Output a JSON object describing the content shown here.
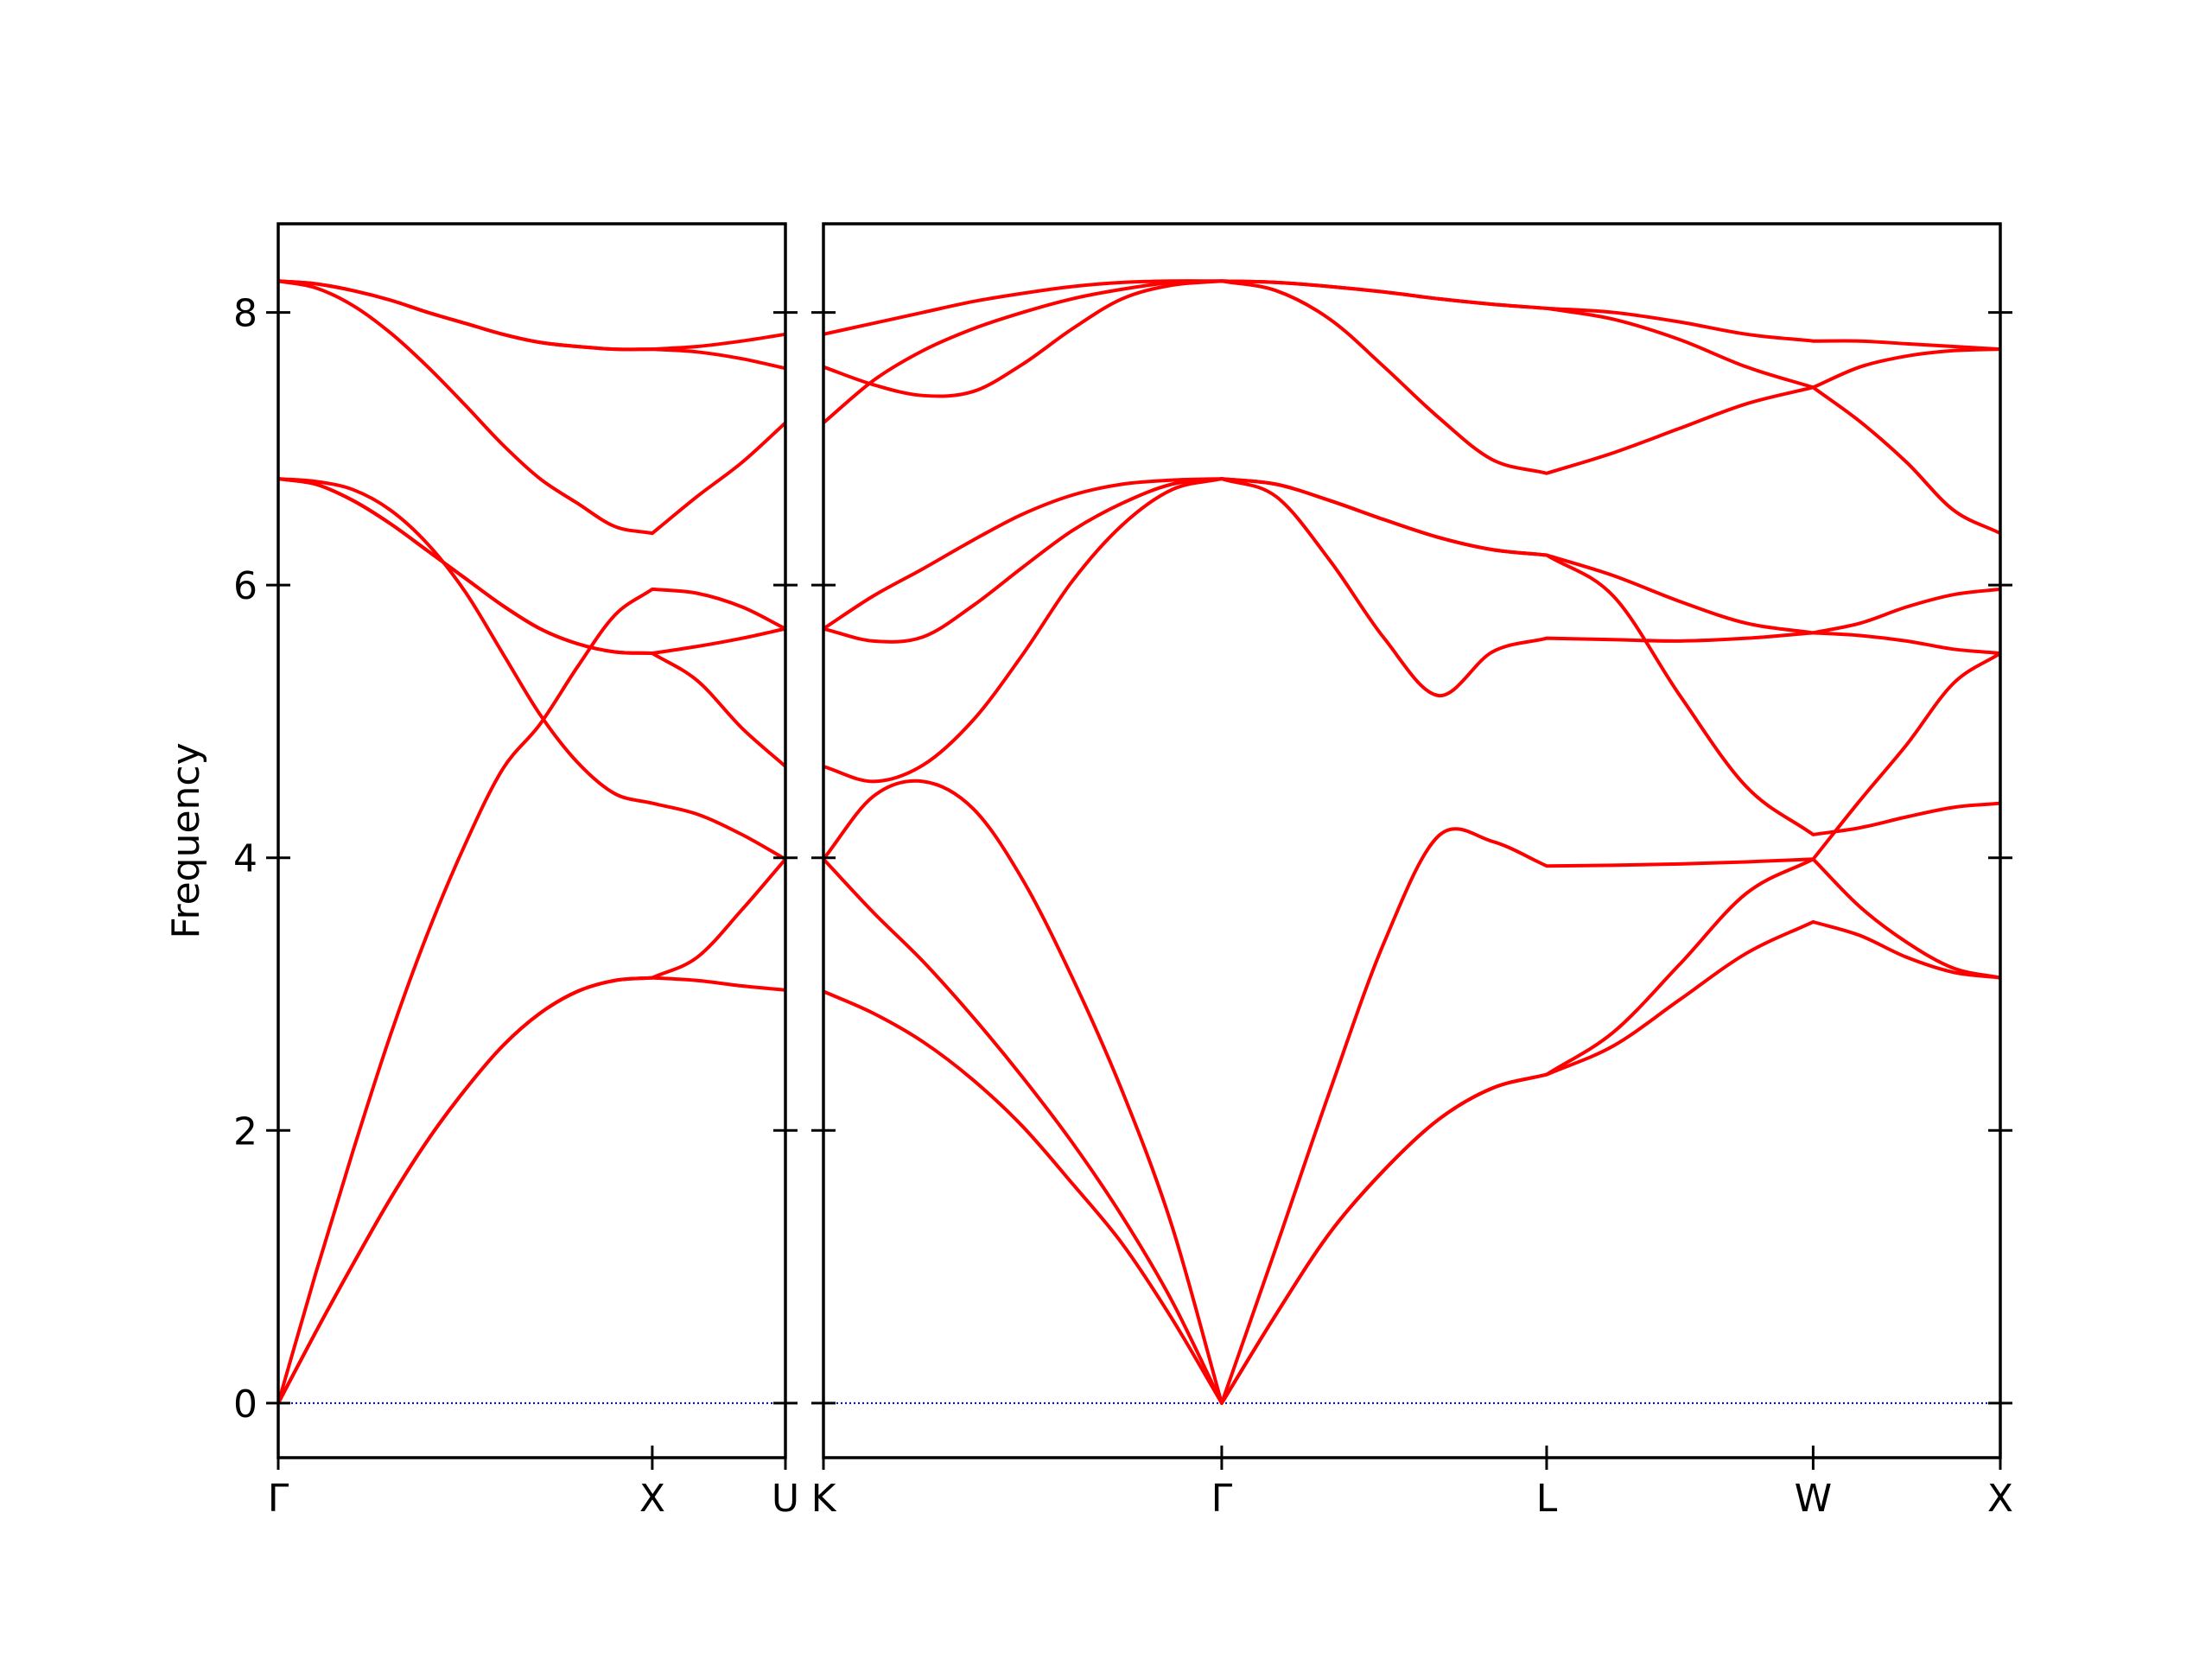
{
  "chart_data": [
    {
      "type": "line",
      "ylabel": "Frequency",
      "color": "#ff0000",
      "hline": 0,
      "hline_color": "#0000cc",
      "show_ytick_labels": true,
      "xlim": [
        0,
        1.356
      ],
      "xticks": [
        {
          "value": 0,
          "label": "Γ"
        },
        {
          "value": 1,
          "label": "X"
        },
        {
          "value": 1.356,
          "label": "U"
        }
      ],
      "ylim": [
        -0.4,
        8.65
      ],
      "yticks": [
        0,
        2,
        4,
        6,
        8
      ],
      "x": [
        0,
        0.1,
        0.2,
        0.3,
        0.4,
        0.5,
        0.6,
        0.7,
        0.8,
        0.9,
        1.0,
        1.12,
        1.24,
        1.356
      ],
      "series": [
        {
          "values": [
            0,
            0.52,
            1.02,
            1.5,
            1.93,
            2.3,
            2.62,
            2.86,
            3.02,
            3.1,
            3.12,
            3.1,
            3.06,
            3.03
          ]
        },
        {
          "values": [
            0,
            0.52,
            1.02,
            1.5,
            1.93,
            2.3,
            2.62,
            2.86,
            3.02,
            3.1,
            3.12,
            3.27,
            3.62,
            3.99
          ]
        },
        {
          "values": [
            0,
            0.95,
            1.85,
            2.7,
            3.45,
            4.1,
            4.65,
            4.98,
            5.4,
            5.78,
            5.97,
            5.94,
            5.84,
            5.68
          ]
        },
        {
          "values": [
            6.78,
            6.76,
            6.7,
            6.55,
            6.3,
            5.95,
            5.5,
            5.05,
            4.7,
            4.47,
            4.4,
            4.32,
            4.17,
            3.99
          ]
        },
        {
          "values": [
            6.78,
            6.74,
            6.62,
            6.45,
            6.25,
            6.05,
            5.85,
            5.68,
            5.57,
            5.51,
            5.5,
            5.55,
            5.61,
            5.68
          ]
        },
        {
          "values": [
            6.78,
            6.74,
            6.62,
            6.45,
            6.25,
            6.05,
            5.85,
            5.68,
            5.57,
            5.51,
            5.5,
            5.3,
            4.95,
            4.67
          ]
        },
        {
          "values": [
            8.23,
            8.18,
            8.05,
            7.85,
            7.6,
            7.32,
            7.03,
            6.78,
            6.6,
            6.43,
            6.38,
            6.65,
            6.9,
            7.19
          ]
        },
        {
          "values": [
            8.23,
            8.21,
            8.16,
            8.09,
            8.0,
            7.92,
            7.84,
            7.78,
            7.75,
            7.73,
            7.73,
            7.75,
            7.79,
            7.84
          ]
        },
        {
          "values": [
            8.23,
            8.21,
            8.16,
            8.09,
            8.0,
            7.92,
            7.84,
            7.78,
            7.75,
            7.73,
            7.73,
            7.71,
            7.66,
            7.59
          ]
        }
      ]
    },
    {
      "type": "line",
      "color": "#ff0000",
      "hline": 0,
      "hline_color": "#0000cc",
      "show_ytick_labels": false,
      "xlim": [
        0,
        3.144
      ],
      "xticks": [
        {
          "value": 0,
          "label": "K"
        },
        {
          "value": 1.064,
          "label": "Γ"
        },
        {
          "value": 1.932,
          "label": "L"
        },
        {
          "value": 2.644,
          "label": "W"
        },
        {
          "value": 3.144,
          "label": "X"
        }
      ],
      "ylim": [
        -0.4,
        8.65
      ],
      "yticks": [
        0,
        2,
        4,
        6,
        8
      ],
      "x": [
        0,
        0.133,
        0.266,
        0.4,
        0.532,
        0.665,
        0.798,
        0.931,
        1.064,
        1.209,
        1.353,
        1.498,
        1.643,
        1.787,
        1.932,
        2.11,
        2.288,
        2.466,
        2.644,
        2.769,
        2.894,
        3.019,
        3.144
      ],
      "series": [
        {
          "values": [
            3.02,
            2.86,
            2.65,
            2.37,
            2.03,
            1.61,
            1.17,
            0.62,
            0,
            0.65,
            1.25,
            1.71,
            2.08,
            2.31,
            2.41,
            2.62,
            2.96,
            3.3,
            3.53,
            3.43,
            3.27,
            3.16,
            3.12
          ]
        },
        {
          "values": [
            3.99,
            3.6,
            3.24,
            2.83,
            2.39,
            1.91,
            1.37,
            0.75,
            0,
            0.65,
            1.25,
            1.71,
            2.08,
            2.31,
            2.41,
            2.72,
            3.22,
            3.74,
            3.99,
            3.64,
            3.38,
            3.19,
            3.12
          ]
        },
        {
          "values": [
            3.99,
            4.45,
            4.56,
            4.36,
            3.84,
            3.12,
            2.29,
            1.3,
            0,
            1.14,
            2.29,
            3.38,
            4.16,
            4.12,
            3.94,
            3.945,
            3.955,
            3.97,
            3.99,
            4.42,
            4.83,
            5.28,
            5.5
          ]
        },
        {
          "values": [
            4.67,
            4.56,
            4.68,
            5.01,
            5.49,
            6.03,
            6.44,
            6.7,
            6.78,
            6.65,
            6.18,
            5.61,
            5.19,
            5.51,
            5.61,
            5.6,
            5.59,
            5.61,
            5.65,
            5.63,
            5.59,
            5.53,
            5.5
          ]
        },
        {
          "values": [
            5.68,
            5.59,
            5.62,
            5.85,
            6.13,
            6.4,
            6.6,
            6.74,
            6.78,
            6.74,
            6.62,
            6.48,
            6.35,
            6.26,
            6.22,
            5.92,
            5.19,
            4.52,
            4.17,
            4.22,
            4.3,
            4.37,
            4.4
          ]
        },
        {
          "values": [
            5.68,
            5.92,
            6.12,
            6.33,
            6.52,
            6.66,
            6.74,
            6.77,
            6.78,
            6.74,
            6.62,
            6.48,
            6.35,
            6.26,
            6.22,
            6.07,
            5.88,
            5.72,
            5.65,
            5.72,
            5.84,
            5.93,
            5.97
          ]
        },
        {
          "values": [
            7.19,
            7.5,
            7.72,
            7.88,
            8.0,
            8.1,
            8.17,
            8.22,
            8.23,
            8.16,
            7.95,
            7.6,
            7.23,
            6.92,
            6.82,
            6.97,
            7.15,
            7.33,
            7.45,
            7.6,
            7.68,
            7.72,
            7.73
          ]
        },
        {
          "values": [
            7.6,
            7.47,
            7.39,
            7.42,
            7.62,
            7.88,
            8.1,
            8.2,
            8.23,
            8.22,
            8.19,
            8.15,
            8.1,
            8.06,
            8.03,
            7.95,
            7.8,
            7.6,
            7.45,
            7.2,
            6.9,
            6.55,
            6.38
          ]
        },
        {
          "values": [
            7.84,
            7.92,
            8.0,
            8.08,
            8.14,
            8.19,
            8.22,
            8.23,
            8.23,
            8.22,
            8.19,
            8.15,
            8.1,
            8.06,
            8.03,
            8.0,
            7.93,
            7.84,
            7.79,
            7.79,
            7.77,
            7.75,
            7.73
          ]
        }
      ]
    }
  ]
}
